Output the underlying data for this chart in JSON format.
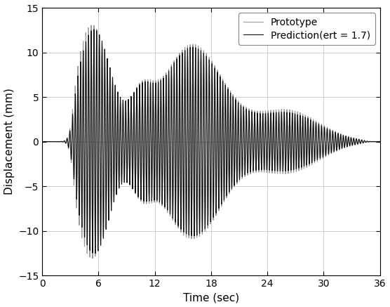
{
  "title": "",
  "xlabel": "Time (sec)",
  "ylabel": "Displacement (mm)",
  "xlim": [
    0,
    36
  ],
  "ylim": [
    -15,
    15
  ],
  "xticks": [
    0,
    6,
    12,
    18,
    24,
    30,
    36
  ],
  "yticks": [
    -15,
    -10,
    -5,
    0,
    5,
    10,
    15
  ],
  "prototype_color": "#999999",
  "prediction_color": "#111111",
  "prototype_linewidth": 0.8,
  "prediction_linewidth": 0.8,
  "legend_labels": [
    "Prototype",
    "Prediction(ert = 1.7)"
  ],
  "legend_loc": "upper right",
  "grid_color": "#bbbbbb",
  "grid_linewidth": 0.5,
  "background_color": "#ffffff",
  "duration": 36.0,
  "dt": 0.002,
  "signal_freq": 3.5
}
